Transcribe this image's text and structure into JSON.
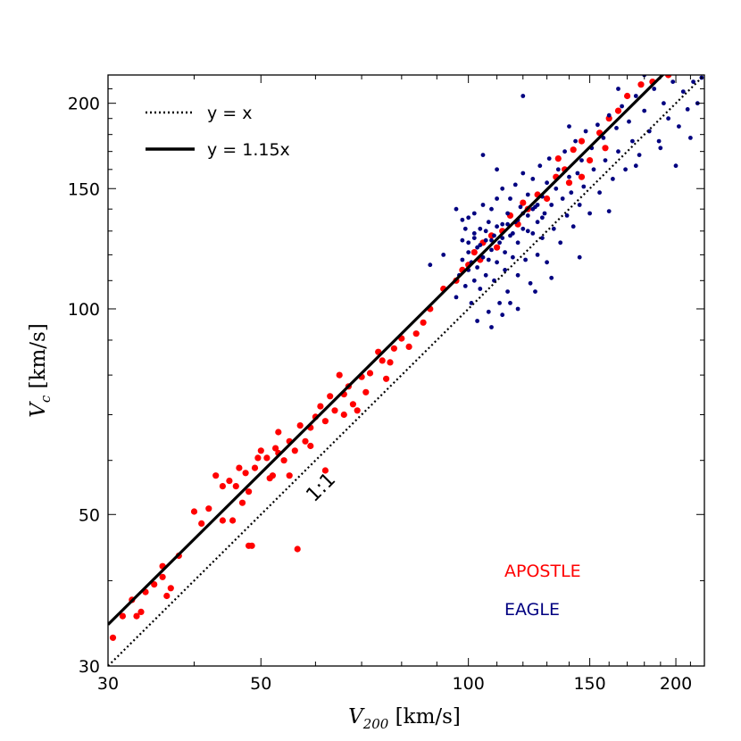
{
  "chart_data": {
    "type": "scatter",
    "xscale": "log",
    "yscale": "log",
    "xlim": [
      30,
      220
    ],
    "ylim": [
      30,
      220
    ],
    "xlabel": {
      "main": "V",
      "sub": "200",
      "unit": " [km/s]"
    },
    "ylabel": {
      "main": "V",
      "sub": "c",
      "unit": " [km/s]"
    },
    "xticks": [
      30,
      50,
      100,
      150,
      200
    ],
    "yticks": [
      30,
      50,
      100,
      150,
      200
    ],
    "xtick_labels": [
      "30",
      "50",
      "100",
      "150",
      "200"
    ],
    "ytick_labels": [
      "30",
      "50",
      "100",
      "150",
      "200"
    ],
    "lines": [
      {
        "name": "y = x",
        "slope": 1.0,
        "style": "dotted",
        "color": "#000000"
      },
      {
        "name": "y = 1.15x",
        "slope": 1.15,
        "style": "solid",
        "color": "#000000"
      }
    ],
    "legend": {
      "position": "top-left",
      "entries": [
        "y = x",
        "y = 1.15x"
      ]
    },
    "annotation": {
      "text": "1:1",
      "x": 62,
      "y": 54,
      "rotation_deg": -45
    },
    "series": [
      {
        "name": "APOSTLE",
        "color": "#ff0000",
        "points": [
          [
            30.5,
            33
          ],
          [
            31.5,
            35.5
          ],
          [
            32.5,
            37.5
          ],
          [
            33,
            35.5
          ],
          [
            33.5,
            36
          ],
          [
            34,
            38.5
          ],
          [
            35,
            39.5
          ],
          [
            36,
            40.5
          ],
          [
            36.5,
            38
          ],
          [
            37,
            39
          ],
          [
            38,
            43.5
          ],
          [
            40,
            50.5
          ],
          [
            41,
            48.5
          ],
          [
            42,
            51
          ],
          [
            43,
            57
          ],
          [
            44,
            55
          ],
          [
            45,
            56
          ],
          [
            45.5,
            49
          ],
          [
            46,
            55
          ],
          [
            46.5,
            58.5
          ],
          [
            47,
            52
          ],
          [
            47.5,
            57.5
          ],
          [
            48,
            54
          ],
          [
            48.5,
            45
          ],
          [
            49,
            58.5
          ],
          [
            49.5,
            60.5
          ],
          [
            50,
            62
          ],
          [
            51,
            60.5
          ],
          [
            51.5,
            56.5
          ],
          [
            52,
            57
          ],
          [
            52.5,
            62.5
          ],
          [
            53,
            61.5
          ],
          [
            54,
            60
          ],
          [
            55,
            64
          ],
          [
            56,
            62
          ],
          [
            56.5,
            44.5
          ],
          [
            57,
            67.5
          ],
          [
            58,
            64
          ],
          [
            59,
            67
          ],
          [
            60,
            69.5
          ],
          [
            61,
            72
          ],
          [
            62,
            68.5
          ],
          [
            63,
            74.5
          ],
          [
            64,
            71
          ],
          [
            65,
            80
          ],
          [
            66,
            70
          ],
          [
            67,
            77
          ],
          [
            68,
            72.5
          ],
          [
            70,
            79.5
          ],
          [
            71,
            75.5
          ],
          [
            72,
            80.5
          ],
          [
            74,
            86.5
          ],
          [
            75,
            84
          ],
          [
            77,
            83.5
          ],
          [
            78,
            87.5
          ],
          [
            80,
            90.5
          ],
          [
            82,
            88
          ],
          [
            84,
            92
          ],
          [
            86,
            95.5
          ],
          [
            88,
            100
          ],
          [
            92,
            107
          ],
          [
            96,
            110
          ],
          [
            98,
            114
          ],
          [
            100,
            116
          ],
          [
            102,
            121
          ],
          [
            105,
            125
          ],
          [
            108,
            128
          ],
          [
            110,
            123
          ],
          [
            112,
            130
          ],
          [
            115,
            137
          ],
          [
            118,
            133
          ],
          [
            122,
            140
          ],
          [
            126,
            147
          ],
          [
            130,
            145
          ],
          [
            134,
            156
          ],
          [
            138,
            160
          ],
          [
            142,
            171
          ],
          [
            146,
            176
          ],
          [
            150,
            165
          ],
          [
            155,
            181
          ],
          [
            160,
            190
          ],
          [
            165,
            195
          ],
          [
            170,
            205
          ],
          [
            178,
            213
          ],
          [
            185,
            215
          ],
          [
            195,
            220
          ],
          [
            48,
            45
          ],
          [
            44,
            49
          ],
          [
            36,
            42
          ],
          [
            53,
            66
          ],
          [
            59,
            63
          ],
          [
            66,
            75
          ],
          [
            69,
            71
          ],
          [
            76,
            79
          ],
          [
            62,
            58
          ],
          [
            55,
            57
          ],
          [
            120,
            143
          ],
          [
            104,
            118
          ],
          [
            140,
            153
          ],
          [
            158,
            172
          ],
          [
            146,
            156
          ],
          [
            135,
            166
          ]
        ]
      },
      {
        "name": "EAGLE",
        "color": "#000080",
        "points": [
          [
            96,
            104
          ],
          [
            97,
            112
          ],
          [
            98,
            118
          ],
          [
            98,
            126
          ],
          [
            99,
            108
          ],
          [
            99,
            131
          ],
          [
            100,
            114
          ],
          [
            100,
            121
          ],
          [
            100,
            136
          ],
          [
            101,
            102
          ],
          [
            101,
            117
          ],
          [
            102,
            110
          ],
          [
            102,
            127
          ],
          [
            102,
            138
          ],
          [
            103,
            96
          ],
          [
            103,
            115
          ],
          [
            103,
            123
          ],
          [
            104,
            131
          ],
          [
            104,
            107
          ],
          [
            105,
            119
          ],
          [
            105,
            142
          ],
          [
            106,
            112
          ],
          [
            106,
            126
          ],
          [
            107,
            99
          ],
          [
            107,
            118
          ],
          [
            107,
            134
          ],
          [
            108,
            122
          ],
          [
            108,
            140
          ],
          [
            109,
            110
          ],
          [
            109,
            128
          ],
          [
            110,
            145
          ],
          [
            110,
            117
          ],
          [
            111,
            102
          ],
          [
            111,
            125
          ],
          [
            112,
            133
          ],
          [
            112,
            150
          ],
          [
            113,
            114
          ],
          [
            113,
            121
          ],
          [
            114,
            138
          ],
          [
            114,
            106
          ],
          [
            115,
            128
          ],
          [
            115,
            145
          ],
          [
            116,
            119
          ],
          [
            117,
            134
          ],
          [
            117,
            152
          ],
          [
            118,
            112
          ],
          [
            118,
            125
          ],
          [
            119,
            141
          ],
          [
            120,
            131
          ],
          [
            120,
            158
          ],
          [
            121,
            118
          ],
          [
            122,
            137
          ],
          [
            122,
            147
          ],
          [
            123,
            109
          ],
          [
            124,
            129
          ],
          [
            124,
            155
          ],
          [
            125,
            141
          ],
          [
            126,
            120
          ],
          [
            126,
            134
          ],
          [
            127,
            162
          ],
          [
            128,
            146
          ],
          [
            128,
            127
          ],
          [
            129,
            138
          ],
          [
            130,
            153
          ],
          [
            130,
            117
          ],
          [
            131,
            166
          ],
          [
            132,
            142
          ],
          [
            133,
            131
          ],
          [
            134,
            150
          ],
          [
            135,
            160
          ],
          [
            136,
            125
          ],
          [
            137,
            145
          ],
          [
            138,
            170
          ],
          [
            139,
            137
          ],
          [
            140,
            156
          ],
          [
            141,
            148
          ],
          [
            142,
            132
          ],
          [
            143,
            176
          ],
          [
            144,
            158
          ],
          [
            145,
            142
          ],
          [
            146,
            165
          ],
          [
            147,
            151
          ],
          [
            148,
            182
          ],
          [
            150,
            138
          ],
          [
            151,
            172
          ],
          [
            152,
            160
          ],
          [
            154,
            186
          ],
          [
            155,
            148
          ],
          [
            157,
            178
          ],
          [
            158,
            165
          ],
          [
            160,
            192
          ],
          [
            162,
            155
          ],
          [
            164,
            184
          ],
          [
            165,
            170
          ],
          [
            167,
            198
          ],
          [
            169,
            160
          ],
          [
            171,
            188
          ],
          [
            173,
            176
          ],
          [
            175,
            205
          ],
          [
            177,
            168
          ],
          [
            180,
            195
          ],
          [
            183,
            182
          ],
          [
            186,
            210
          ],
          [
            189,
            176
          ],
          [
            192,
            200
          ],
          [
            195,
            190
          ],
          [
            198,
            215
          ],
          [
            202,
            185
          ],
          [
            205,
            208
          ],
          [
            208,
            196
          ],
          [
            212,
            215
          ],
          [
            215,
            200
          ],
          [
            218,
            218
          ],
          [
            120,
            205
          ],
          [
            105,
            168
          ],
          [
            98,
            135
          ],
          [
            112,
            98
          ],
          [
            115,
            102
          ],
          [
            125,
            106
          ],
          [
            118,
            100
          ],
          [
            108,
            94
          ],
          [
            132,
            111
          ],
          [
            145,
            119
          ],
          [
            160,
            139
          ],
          [
            175,
            162
          ],
          [
            190,
            172
          ],
          [
            200,
            162
          ],
          [
            210,
            178
          ],
          [
            88,
            116
          ],
          [
            92,
            120
          ],
          [
            96,
            140
          ],
          [
            110,
            160
          ],
          [
            140,
            185
          ],
          [
            165,
            210
          ],
          [
            180,
            220
          ],
          [
            100,
            125
          ],
          [
            102,
            129
          ],
          [
            104,
            124
          ],
          [
            106,
            130
          ],
          [
            108,
            126
          ],
          [
            110,
            132
          ],
          [
            112,
            127
          ],
          [
            114,
            133
          ],
          [
            116,
            129
          ],
          [
            118,
            135
          ],
          [
            120,
            138
          ],
          [
            122,
            130
          ],
          [
            124,
            140
          ],
          [
            126,
            142
          ],
          [
            128,
            136
          ]
        ]
      }
    ],
    "series_labels": [
      "APOSTLE",
      "EAGLE"
    ]
  },
  "colors": {
    "apostle": "#ff0000",
    "eagle": "#000080",
    "axis": "#000000"
  }
}
